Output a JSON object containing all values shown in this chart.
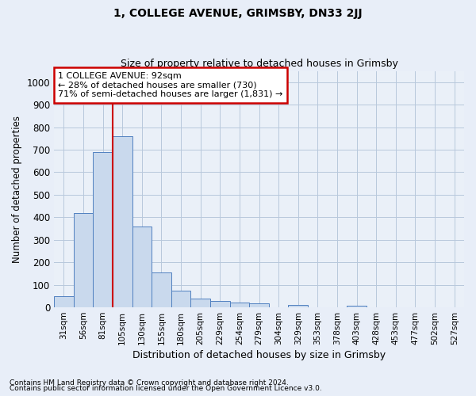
{
  "title": "1, COLLEGE AVENUE, GRIMSBY, DN33 2JJ",
  "subtitle": "Size of property relative to detached houses in Grimsby",
  "xlabel": "Distribution of detached houses by size in Grimsby",
  "ylabel": "Number of detached properties",
  "categories": [
    "31sqm",
    "56sqm",
    "81sqm",
    "105sqm",
    "130sqm",
    "155sqm",
    "180sqm",
    "205sqm",
    "229sqm",
    "254sqm",
    "279sqm",
    "304sqm",
    "329sqm",
    "353sqm",
    "378sqm",
    "403sqm",
    "428sqm",
    "453sqm",
    "477sqm",
    "502sqm",
    "527sqm"
  ],
  "values": [
    48,
    420,
    690,
    760,
    360,
    155,
    75,
    40,
    28,
    20,
    18,
    0,
    10,
    0,
    0,
    8,
    0,
    0,
    0,
    0,
    0
  ],
  "bar_color": "#c9d9ed",
  "bar_edge_color": "#5080c0",
  "vline_x_index": 2,
  "vline_color": "#cc0000",
  "ylim": [
    0,
    1050
  ],
  "yticks": [
    0,
    100,
    200,
    300,
    400,
    500,
    600,
    700,
    800,
    900,
    1000
  ],
  "annotation_line1": "1 COLLEGE AVENUE: 92sqm",
  "annotation_line2": "← 28% of detached houses are smaller (730)",
  "annotation_line3": "71% of semi-detached houses are larger (1,831) →",
  "annotation_box_color": "#cc0000",
  "footnote1": "Contains HM Land Registry data © Crown copyright and database right 2024.",
  "footnote2": "Contains public sector information licensed under the Open Government Licence v3.0.",
  "background_color": "#e8eef8",
  "plot_background": "#eaf0f8",
  "grid_color": "#b8c8dc"
}
